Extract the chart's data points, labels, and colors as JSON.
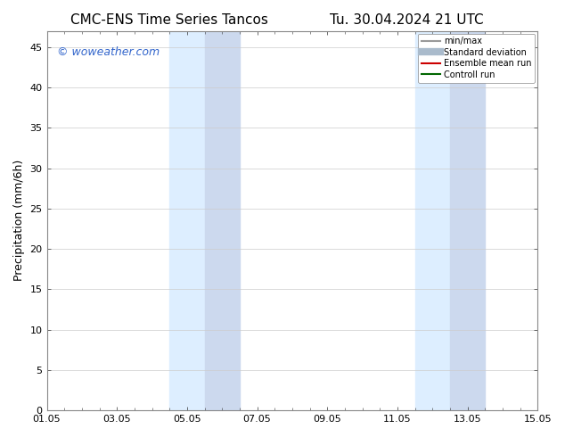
{
  "title_left": "CMC-ENS Time Series Tancos",
  "title_right": "Tu. 30.04.2024 21 UTC",
  "ylabel": "Precipitation (mm/6h)",
  "xlabel": "",
  "ylim": [
    0,
    47
  ],
  "yticks": [
    0,
    5,
    10,
    15,
    20,
    25,
    30,
    35,
    40,
    45
  ],
  "xtick_labels": [
    "01.05",
    "03.05",
    "05.05",
    "07.05",
    "09.05",
    "11.05",
    "13.05",
    "15.05"
  ],
  "xtick_positions": [
    0,
    2,
    4,
    6,
    8,
    10,
    12,
    14
  ],
  "shade_bands": [
    {
      "x_start": 3.5,
      "x_end": 4.5,
      "color": "#ddeeff"
    },
    {
      "x_start": 4.5,
      "x_end": 5.5,
      "color": "#ccd9ee"
    },
    {
      "x_start": 10.5,
      "x_end": 11.5,
      "color": "#ddeeff"
    },
    {
      "x_start": 11.5,
      "x_end": 12.5,
      "color": "#ccd9ee"
    }
  ],
  "background_color": "#ffffff",
  "plot_bg_color": "#ffffff",
  "watermark_text": "© woweather.com",
  "watermark_color": "#3366cc",
  "legend_entries": [
    {
      "label": "min/max",
      "color": "#999999",
      "lw": 1.5,
      "style": "solid"
    },
    {
      "label": "Standard deviation",
      "color": "#aabbcc",
      "lw": 6,
      "style": "solid"
    },
    {
      "label": "Ensemble mean run",
      "color": "#cc0000",
      "lw": 1.5,
      "style": "solid"
    },
    {
      "label": "Controll run",
      "color": "#006600",
      "lw": 1.5,
      "style": "solid"
    }
  ],
  "title_fontsize": 11,
  "axis_fontsize": 9,
  "tick_fontsize": 8,
  "watermark_fontsize": 9,
  "legend_fontsize": 7,
  "grid_color": "#cccccc",
  "spine_color": "#888888",
  "tick_color": "#333333"
}
